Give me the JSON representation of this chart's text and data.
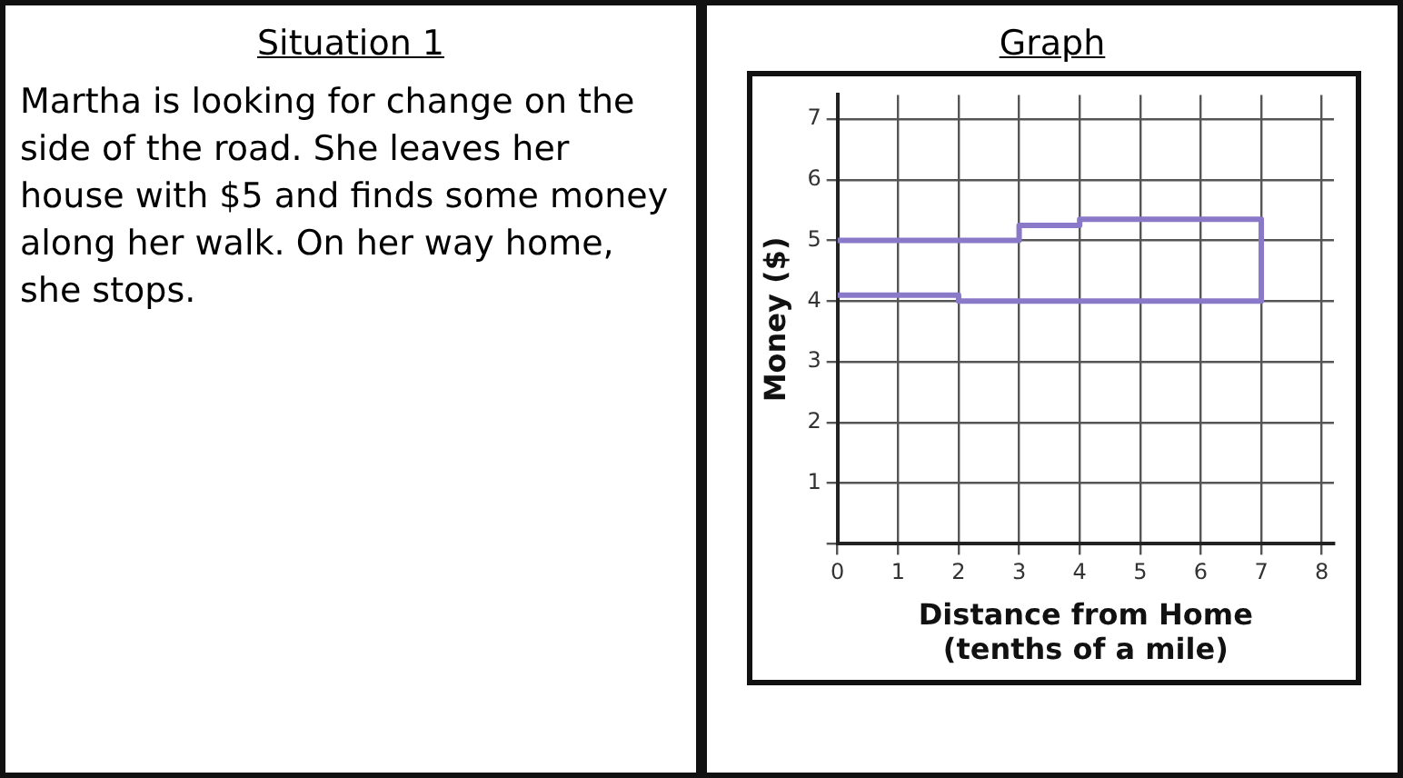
{
  "chart_data": [
    {
      "type": "other",
      "title": "Situation 1",
      "annotations": [
        "Martha is looking for change on the side of the road. She leaves her house with $5 and finds some money along her walk. On her way home, she stops."
      ]
    },
    {
      "type": "line",
      "title": "Graph",
      "xlabel": "Distance from Home\n(tenths of a mile)",
      "ylabel": "Money ($)",
      "x": [
        0,
        3,
        3,
        4,
        4,
        7,
        7,
        2,
        2,
        0
      ],
      "series": [
        {
          "color": "#8a78c8",
          "values": [
            5,
            5,
            5.25,
            5.25,
            5.35,
            5.35,
            4,
            4,
            4.1,
            4.1
          ]
        }
      ],
      "xlim": [
        0,
        8.2
      ],
      "ylim": [
        0,
        7.4
      ],
      "xticks": [
        0,
        1,
        2,
        3,
        4,
        5,
        6,
        7,
        8
      ],
      "yticks": [
        {
          "value": 0,
          "label": null
        },
        1,
        2,
        3,
        4,
        5,
        6,
        7
      ],
      "grid": true,
      "legend": false,
      "marker": "none",
      "line_style": "solid"
    }
  ]
}
